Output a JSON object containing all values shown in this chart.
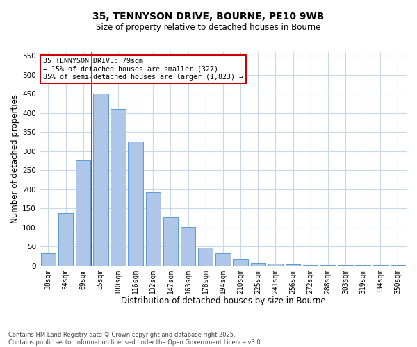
{
  "title_line1": "35, TENNYSON DRIVE, BOURNE, PE10 9WB",
  "title_line2": "Size of property relative to detached houses in Bourne",
  "xlabel": "Distribution of detached houses by size in Bourne",
  "ylabel": "Number of detached properties",
  "bar_labels": [
    "38sqm",
    "54sqm",
    "69sqm",
    "85sqm",
    "100sqm",
    "116sqm",
    "132sqm",
    "147sqm",
    "163sqm",
    "178sqm",
    "194sqm",
    "210sqm",
    "225sqm",
    "241sqm",
    "256sqm",
    "272sqm",
    "288sqm",
    "303sqm",
    "319sqm",
    "334sqm",
    "350sqm"
  ],
  "bar_values": [
    33,
    137,
    277,
    450,
    410,
    325,
    192,
    127,
    101,
    47,
    32,
    18,
    7,
    5,
    3,
    2,
    1,
    1,
    1,
    1,
    1
  ],
  "bar_color": "#aec6e8",
  "bar_edge_color": "#5b9bd5",
  "vline_x_index": 3,
  "vline_color": "#cc0000",
  "annotation_text": "35 TENNYSON DRIVE: 79sqm\n← 15% of detached houses are smaller (327)\n85% of semi-detached houses are larger (1,823) →",
  "annotation_box_color": "#ffffff",
  "annotation_box_edge_color": "#cc0000",
  "ylim": [
    0,
    560
  ],
  "yticks": [
    0,
    50,
    100,
    150,
    200,
    250,
    300,
    350,
    400,
    450,
    500,
    550
  ],
  "background_color": "#ffffff",
  "grid_color": "#c8d8e8",
  "footnote_line1": "Contains HM Land Registry data © Crown copyright and database right 2025.",
  "footnote_line2": "Contains public sector information licensed under the Open Government Licence v3.0."
}
